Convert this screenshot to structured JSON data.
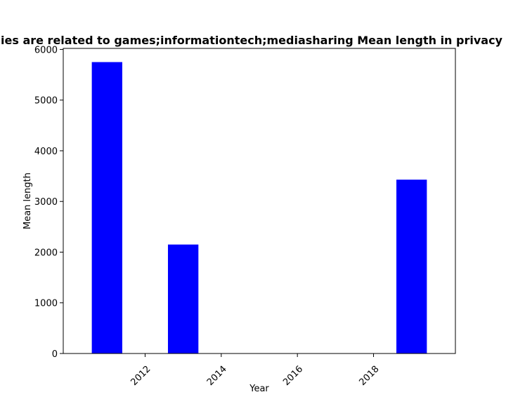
{
  "chart_data": {
    "type": "bar",
    "title": "Mean length of privacy policies of apps whose categories are related to games;informationtech;mediasharing Mean length in privacy policies",
    "title_visible": "ies are related to games;informationtech;mediasharing Mean length in privacy",
    "xlabel": "Year",
    "ylabel": "Mean length",
    "x": [
      2011,
      2013,
      2019
    ],
    "values": [
      5750,
      2150,
      3430
    ],
    "bar_width": 0.8,
    "xlim": [
      2009.85,
      2020.15
    ],
    "ylim": [
      0,
      6020
    ],
    "xticks": [
      2012,
      2014,
      2016,
      2018
    ],
    "yticks": [
      0,
      1000,
      2000,
      3000,
      4000,
      5000,
      6000
    ],
    "xtick_rotation": 45,
    "bar_color": "#0000ff",
    "grid": false
  }
}
